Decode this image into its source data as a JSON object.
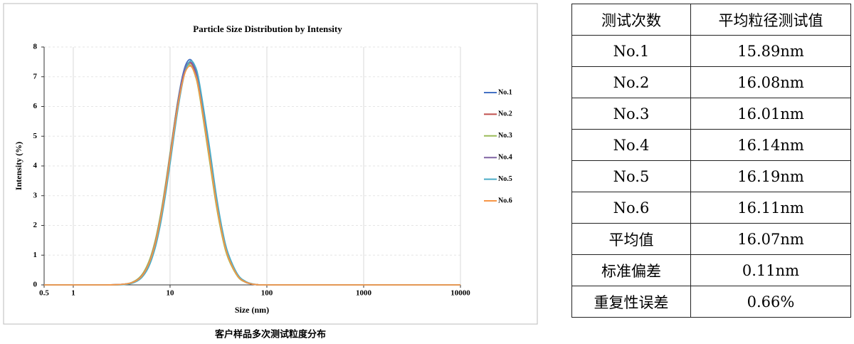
{
  "chart_data": {
    "type": "line",
    "title": "Particle Size Distribution by Intensity",
    "x_label": "Size (nm)",
    "y_label": "Intensity (%)",
    "x": [
      0.5,
      1,
      2,
      3,
      4,
      5,
      6,
      7,
      8,
      9,
      10,
      12,
      14,
      16,
      18,
      20,
      25,
      30,
      35,
      40,
      50,
      60,
      70,
      80,
      100,
      1000,
      10000
    ],
    "x_scale": "log",
    "xlim": [
      0.5,
      10000
    ],
    "xticks": [
      0.5,
      1,
      10,
      100,
      1000,
      10000
    ],
    "ylim": [
      0,
      8
    ],
    "yticks": [
      0,
      1,
      2,
      3,
      4,
      5,
      6,
      7,
      8
    ],
    "grid": true,
    "legend": "right",
    "series": [
      {
        "name": "No.1",
        "color": "#4472c4",
        "values": [
          0,
          0,
          0,
          0.01,
          0.07,
          0.27,
          0.71,
          1.4,
          2.31,
          3.34,
          4.39,
          6.17,
          7.25,
          7.58,
          7.32,
          6.7,
          4.64,
          2.86,
          1.67,
          0.96,
          0.31,
          0.1,
          0.03,
          0.01,
          0,
          0,
          0
        ]
      },
      {
        "name": "No.2",
        "color": "#c0504d",
        "values": [
          0,
          0,
          0,
          0.01,
          0.07,
          0.27,
          0.7,
          1.38,
          2.28,
          3.29,
          4.33,
          6.08,
          7.14,
          7.46,
          7.21,
          6.6,
          4.57,
          2.82,
          1.64,
          0.95,
          0.31,
          0.1,
          0.03,
          0.01,
          0,
          0,
          0
        ]
      },
      {
        "name": "No.3",
        "color": "#9bbb59",
        "values": [
          0,
          0,
          0,
          0.01,
          0.08,
          0.3,
          0.76,
          1.47,
          2.39,
          3.41,
          4.44,
          6.15,
          7.15,
          7.4,
          7.09,
          6.44,
          4.39,
          2.68,
          1.55,
          0.88,
          0.28,
          0.09,
          0.03,
          0.01,
          0,
          0,
          0
        ]
      },
      {
        "name": "No.4",
        "color": "#8064a2",
        "values": [
          0,
          0,
          0,
          0.01,
          0.07,
          0.27,
          0.7,
          1.39,
          2.29,
          3.31,
          4.35,
          6.11,
          7.18,
          7.5,
          7.25,
          6.63,
          4.59,
          2.83,
          1.65,
          0.95,
          0.31,
          0.1,
          0.03,
          0.01,
          0,
          0,
          0
        ]
      },
      {
        "name": "No.5",
        "color": "#4bacc6",
        "values": [
          0,
          0,
          0,
          0,
          0.05,
          0.22,
          0.6,
          1.23,
          2.08,
          3.06,
          4.07,
          5.87,
          7.05,
          7.52,
          7.38,
          6.83,
          4.84,
          3.03,
          1.79,
          1.04,
          0.35,
          0.12,
          0.04,
          0.01,
          0,
          0,
          0
        ]
      },
      {
        "name": "No.6",
        "color": "#f79646",
        "values": [
          0,
          0,
          0,
          0.01,
          0.07,
          0.26,
          0.69,
          1.36,
          2.25,
          3.25,
          4.27,
          6.0,
          7.05,
          7.36,
          7.12,
          6.51,
          4.51,
          2.78,
          1.62,
          0.93,
          0.3,
          0.1,
          0.03,
          0.01,
          0,
          0,
          0
        ]
      }
    ]
  },
  "caption": "客户样品多次测试粒度分布",
  "table": {
    "header": [
      "测试次数",
      "平均粒径测试值"
    ],
    "rows": [
      [
        "No.1",
        "15.89nm"
      ],
      [
        "No.2",
        "16.08nm"
      ],
      [
        "No.3",
        "16.01nm"
      ],
      [
        "No.4",
        "16.14nm"
      ],
      [
        "No.5",
        "16.19nm"
      ],
      [
        "No.6",
        "16.11nm"
      ],
      [
        "平均值",
        "16.07nm"
      ],
      [
        "标准偏差",
        "0.11nm"
      ],
      [
        "重复性误差",
        "0.66%"
      ]
    ]
  }
}
